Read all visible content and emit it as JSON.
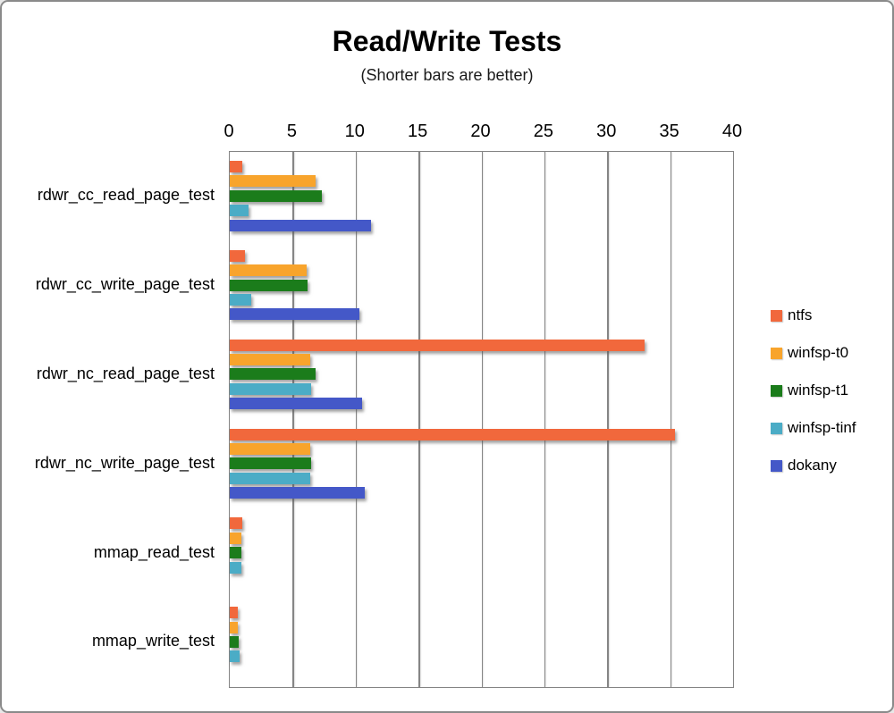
{
  "frame": {
    "background": "#ffffff",
    "border_color": "#8a8a8a"
  },
  "chart_data": {
    "type": "bar",
    "orientation": "horizontal",
    "title": "Read/Write Tests",
    "subtitle": "(Shorter bars are better)",
    "xlabel": "",
    "ylabel": "",
    "xlim": [
      0,
      40
    ],
    "x_ticks": [
      0,
      5,
      10,
      15,
      20,
      25,
      30,
      35,
      40
    ],
    "grid": true,
    "grid_color": "#858585",
    "legend_position": "right",
    "categories": [
      "rdwr_cc_read_page_test",
      "rdwr_cc_write_page_test",
      "rdwr_nc_read_page_test",
      "rdwr_nc_write_page_test",
      "mmap_read_test",
      "mmap_write_test"
    ],
    "series": [
      {
        "name": "ntfs",
        "color": "#F1683C",
        "values": [
          1.0,
          1.2,
          33.0,
          35.4,
          1.0,
          0.65
        ]
      },
      {
        "name": "winfsp-t0",
        "color": "#F8A42C",
        "values": [
          6.8,
          6.1,
          6.4,
          6.4,
          0.9,
          0.65
        ]
      },
      {
        "name": "winfsp-t1",
        "color": "#1B7C1B",
        "values": [
          7.3,
          6.2,
          6.8,
          6.5,
          0.95,
          0.7
        ]
      },
      {
        "name": "winfsp-tinf",
        "color": "#4BACC6",
        "values": [
          1.5,
          1.7,
          6.5,
          6.4,
          0.9,
          0.75
        ]
      },
      {
        "name": "dokany",
        "color": "#4458C8",
        "values": [
          11.2,
          10.3,
          10.5,
          10.7,
          null,
          null
        ]
      }
    ]
  }
}
